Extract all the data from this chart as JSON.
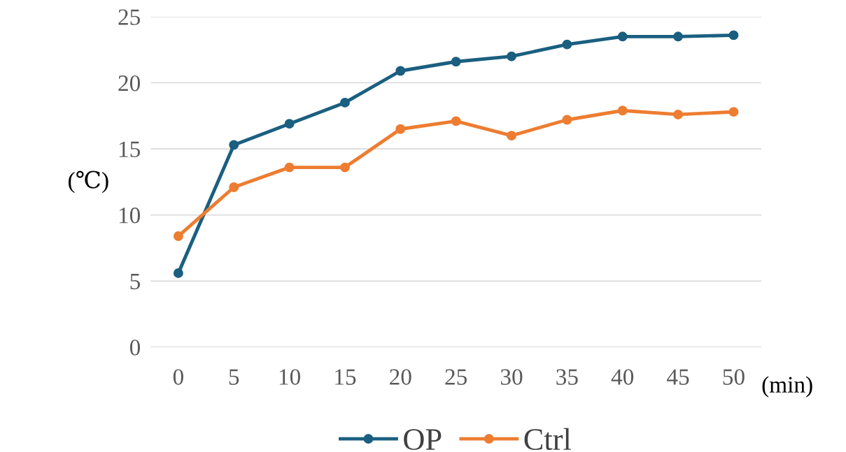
{
  "chart_data": {
    "type": "line",
    "xlabel": "(min)",
    "ylabel": "(℃)",
    "categories": [
      "0",
      "5",
      "10",
      "15",
      "20",
      "25",
      "30",
      "35",
      "40",
      "45",
      "50"
    ],
    "series": [
      {
        "name": "OP",
        "color": "#1a5f80",
        "values": [
          5.6,
          15.3,
          16.9,
          18.5,
          20.9,
          21.6,
          22.0,
          22.9,
          23.5,
          23.5,
          23.6
        ]
      },
      {
        "name": "Ctrl",
        "color": "#ed7d31",
        "values": [
          8.4,
          12.1,
          13.6,
          13.6,
          16.5,
          17.1,
          16.0,
          17.2,
          17.9,
          17.6,
          17.8
        ]
      }
    ],
    "ylim": [
      0,
      25
    ],
    "yticks": [
      0,
      5,
      10,
      15,
      20,
      25
    ],
    "grid": "y",
    "legend": "bottom",
    "marker": "circle",
    "line_style": "solid"
  }
}
